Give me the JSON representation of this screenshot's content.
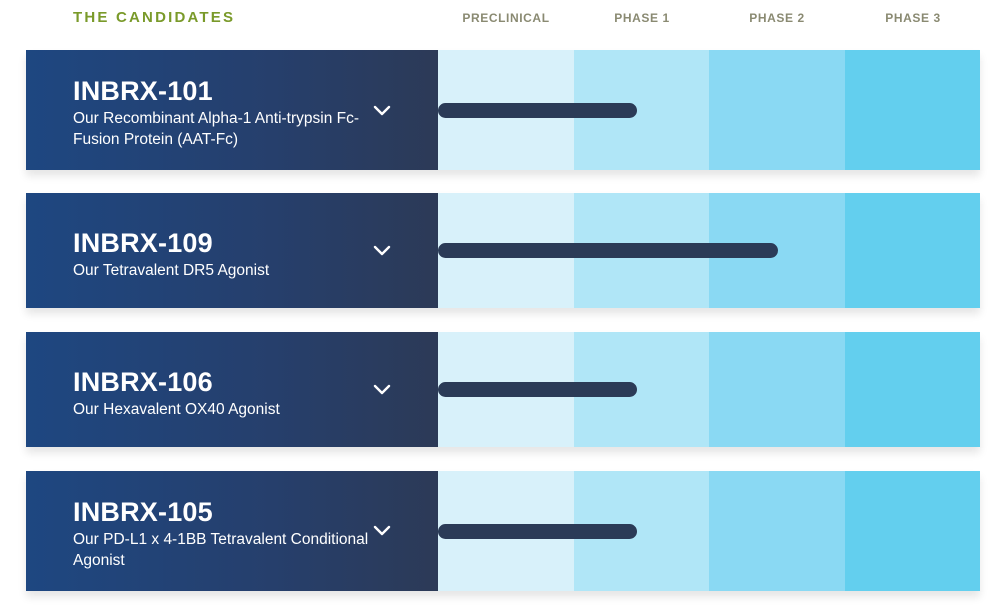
{
  "header": {
    "title": "THE CANDIDATES",
    "phases": [
      "PRECLINICAL",
      "PHASE 1",
      "PHASE 2",
      "PHASE 3"
    ]
  },
  "colors": {
    "title_green": "#7a9a2a",
    "phase_header_gray": "#8a8a72",
    "label_navy": "#1e4781",
    "bar_navy": "#2b3b57",
    "phase_fills": [
      "#d8f1fa",
      "#b0e6f7",
      "#8ad9f3",
      "#63cfee"
    ]
  },
  "candidates": [
    {
      "name": "INBRX-101",
      "description": "Our Recombinant Alpha-1 Anti-trypsin Fc-Fusion Protein (AAT-Fc)",
      "icon": "chevron-down-icon",
      "progress_phases": 1.47
    },
    {
      "name": "INBRX-109",
      "description": "Our Tetravalent DR5 Agonist",
      "icon": "chevron-down-icon",
      "progress_phases": 2.51
    },
    {
      "name": "INBRX-106",
      "description": "Our Hexavalent OX40 Agonist",
      "icon": "chevron-down-icon",
      "progress_phases": 1.47
    },
    {
      "name": "INBRX-105",
      "description": "Our PD-L1 x 4-1BB Tetravalent Conditional Agonist",
      "icon": "chevron-down-icon",
      "progress_phases": 1.47
    }
  ]
}
